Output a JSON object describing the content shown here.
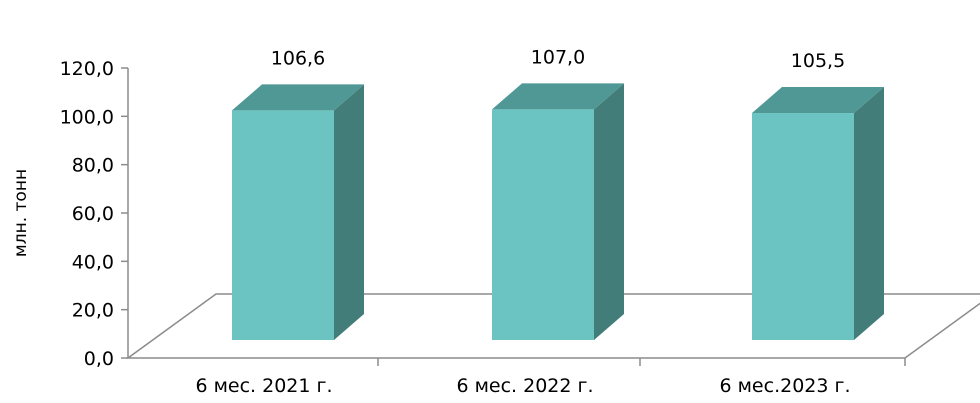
{
  "chart_data": {
    "type": "bar",
    "style": "3d-column",
    "categories": [
      "6 мес. 2021 г.",
      "6 мес. 2022 г.",
      "6 мес.2023 г."
    ],
    "values": [
      106.6,
      107.0,
      105.5
    ],
    "data_labels": [
      "106,6",
      "107,0",
      "105,5"
    ],
    "ylabel": "млн. тонн",
    "ylim": [
      0,
      120
    ],
    "y_ticks": [
      0,
      20,
      40,
      60,
      80,
      100,
      120
    ],
    "y_tick_labels": [
      "0,0",
      "20,0",
      "40,0",
      "60,0",
      "80,0",
      "100,0",
      "120,0"
    ],
    "grid": false,
    "legend": "none",
    "colors": {
      "front": "#6BC4C1",
      "top": "#4F9895",
      "side": "#437D79",
      "axis": "#8C8C8C"
    }
  }
}
